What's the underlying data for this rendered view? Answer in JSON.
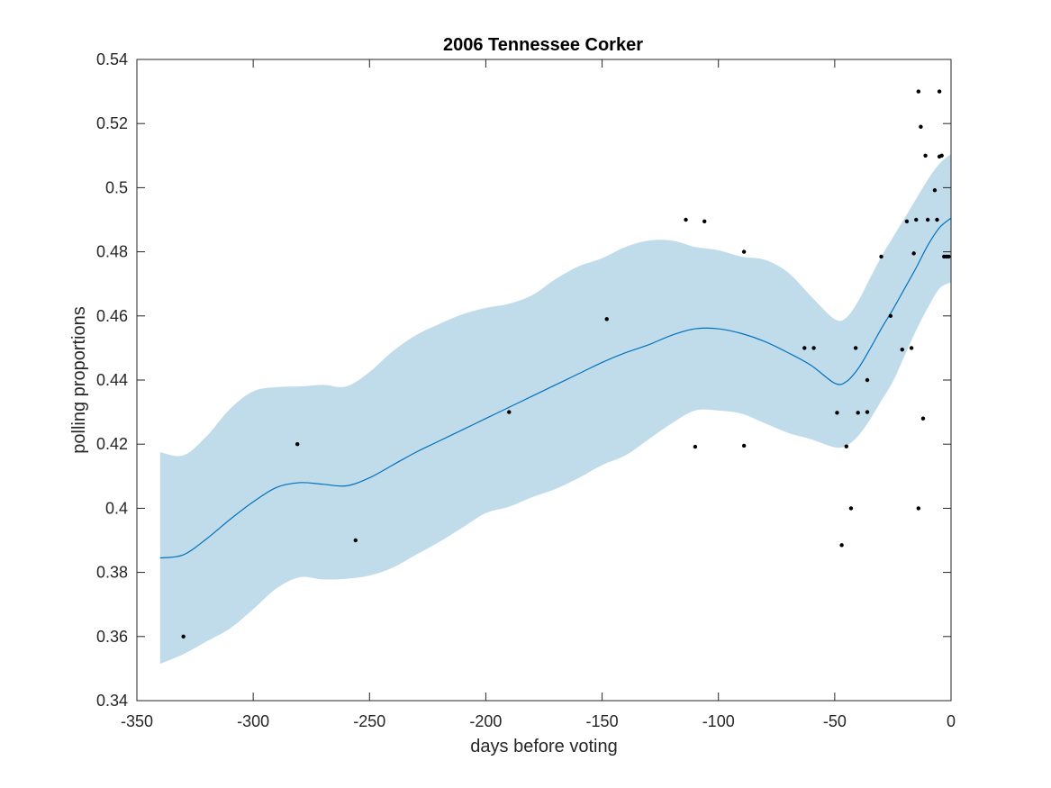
{
  "chart_data": {
    "type": "scatter",
    "title": "2006 Tennessee Corker",
    "xlabel": "days before voting",
    "ylabel": "polling proportions",
    "xlim": [
      -350,
      0
    ],
    "ylim": [
      0.34,
      0.54
    ],
    "xticks": [
      -350,
      -300,
      -250,
      -200,
      -150,
      -100,
      -50,
      0
    ],
    "yticks": [
      0.34,
      0.36,
      0.38,
      0.4,
      0.42,
      0.44,
      0.46,
      0.48,
      0.5,
      0.52,
      0.54
    ],
    "xtick_labels": [
      "-350",
      "-300",
      "-250",
      "-200",
      "-150",
      "-100",
      "-50",
      "0"
    ],
    "ytick_labels": [
      "0.34",
      "0.36",
      "0.38",
      "0.4",
      "0.42",
      "0.44",
      "0.46",
      "0.48",
      "0.5",
      "0.52",
      "0.54"
    ],
    "grid": false,
    "colors": {
      "band": "#c0dcea",
      "fit_line": "#0072bd",
      "points": "#000000",
      "axes": "#262626"
    },
    "fit": {
      "x": [
        -340,
        -330,
        -320,
        -310,
        -300,
        -290,
        -280,
        -270,
        -260,
        -250,
        -240,
        -230,
        -220,
        -210,
        -200,
        -190,
        -180,
        -170,
        -160,
        -150,
        -140,
        -130,
        -120,
        -110,
        -100,
        -90,
        -80,
        -70,
        -60,
        -50,
        -45,
        -40,
        -35,
        -30,
        -25,
        -20,
        -15,
        -10,
        -5,
        0
      ],
      "mean": [
        0.3845,
        0.3855,
        0.3905,
        0.3965,
        0.402,
        0.4065,
        0.408,
        0.4075,
        0.407,
        0.4095,
        0.4135,
        0.4175,
        0.421,
        0.4245,
        0.428,
        0.4315,
        0.435,
        0.4385,
        0.442,
        0.4455,
        0.4485,
        0.451,
        0.454,
        0.456,
        0.456,
        0.4545,
        0.452,
        0.4485,
        0.4445,
        0.439,
        0.4395,
        0.4435,
        0.4495,
        0.456,
        0.462,
        0.4685,
        0.475,
        0.482,
        0.4875,
        0.4905
      ],
      "upper": [
        0.4175,
        0.4165,
        0.4225,
        0.431,
        0.4365,
        0.4378,
        0.438,
        0.4385,
        0.438,
        0.4425,
        0.449,
        0.454,
        0.4575,
        0.4605,
        0.4625,
        0.4638,
        0.4665,
        0.4715,
        0.4755,
        0.478,
        0.4815,
        0.4835,
        0.4835,
        0.4815,
        0.4805,
        0.4785,
        0.4775,
        0.4735,
        0.466,
        0.459,
        0.4595,
        0.4645,
        0.4715,
        0.4785,
        0.4845,
        0.4905,
        0.4965,
        0.5025,
        0.5075,
        0.5105
      ],
      "lower": [
        0.3515,
        0.3545,
        0.3585,
        0.3625,
        0.3685,
        0.375,
        0.3785,
        0.3778,
        0.378,
        0.379,
        0.3815,
        0.3855,
        0.3895,
        0.394,
        0.3985,
        0.4005,
        0.4035,
        0.406,
        0.4095,
        0.4135,
        0.4165,
        0.4215,
        0.4265,
        0.4305,
        0.4305,
        0.4295,
        0.4265,
        0.4235,
        0.4215,
        0.419,
        0.4195,
        0.4225,
        0.4275,
        0.4335,
        0.4395,
        0.4475,
        0.4555,
        0.4625,
        0.4685,
        0.4705
      ]
    },
    "points": {
      "x": [
        -330,
        -281,
        -256,
        -190,
        -148,
        -114,
        -110,
        -106,
        -89,
        -89,
        -63,
        -59,
        -49,
        -47,
        -45,
        -43,
        -41,
        -40,
        -36,
        -36,
        -30,
        -26,
        -21,
        -19,
        -17,
        -16,
        -15,
        -14,
        -14,
        -13,
        -12,
        -11,
        -10,
        -7,
        -6,
        -5,
        -5,
        -4,
        -3,
        -2,
        -1
      ],
      "y": [
        0.36,
        0.42,
        0.39,
        0.43,
        0.459,
        0.49,
        0.4192,
        0.4895,
        0.48,
        0.4195,
        0.45,
        0.45,
        0.4298,
        0.3885,
        0.4193,
        0.4,
        0.45,
        0.4298,
        0.44,
        0.43,
        0.4785,
        0.46,
        0.4495,
        0.4895,
        0.45,
        0.4795,
        0.49,
        0.53,
        0.4,
        0.519,
        0.428,
        0.51,
        0.49,
        0.4992,
        0.49,
        0.53,
        0.5097,
        0.51,
        0.4785,
        0.4785,
        0.4785
      ]
    }
  }
}
